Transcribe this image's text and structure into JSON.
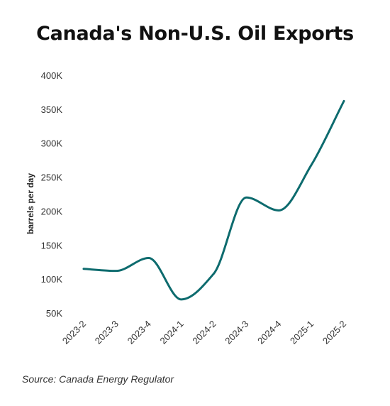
{
  "chart_data": {
    "type": "line",
    "title": "Canada's Non-U.S. Oil Exports",
    "xlabel": "",
    "ylabel": "barrels per day",
    "categories": [
      "2023-2",
      "2023-3",
      "2023-4",
      "2024-1",
      "2024-2",
      "2024-3",
      "2024-4",
      "2025-1",
      "2025-2"
    ],
    "series": [
      {
        "values": [
          115000,
          112000,
          131000,
          70000,
          108000,
          220000,
          201000,
          268000,
          362000
        ],
        "color": "#0d6b6e"
      }
    ],
    "ylim": [
      50000,
      400000
    ],
    "yticks": [
      400000,
      350000,
      300000,
      250000,
      200000,
      150000,
      100000,
      50000
    ],
    "ytick_labels": [
      "400K",
      "350K",
      "300K",
      "250K",
      "200K",
      "150K",
      "100K",
      "50K"
    ],
    "grid": false,
    "legend": "none"
  },
  "source": "Source: Canada Energy Regulator"
}
